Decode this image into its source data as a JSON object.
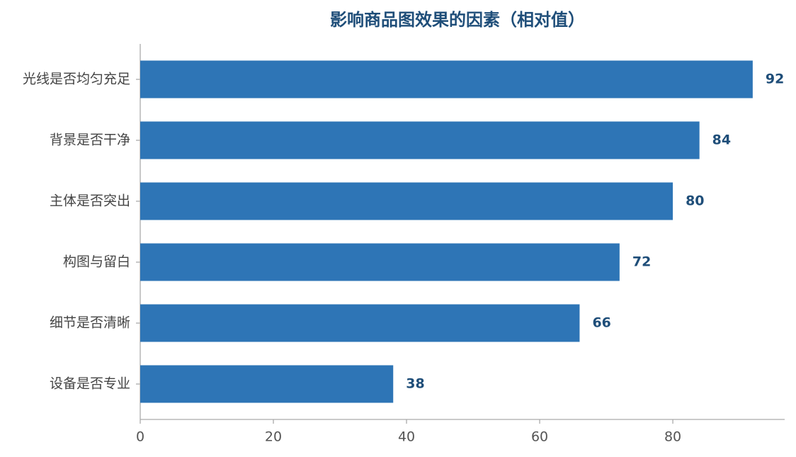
{
  "chart_data": {
    "type": "barh",
    "title": "影响商品图效果的因素（相对值）",
    "categories": [
      "光线是否均匀充足",
      "背景是否干净",
      "主体是否突出",
      "构图与留白",
      "细节是否清晰",
      "设备是否专业"
    ],
    "values": [
      92,
      84,
      80,
      72,
      66,
      38
    ],
    "color": "#2e75b6",
    "xlim": [
      0,
      96.8
    ],
    "xticks": [
      0,
      20,
      40,
      60,
      80
    ],
    "grid": false
  }
}
